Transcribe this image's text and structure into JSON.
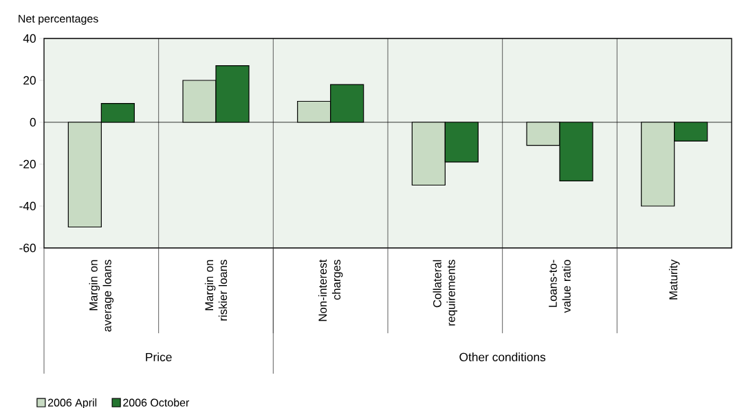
{
  "chart_data": {
    "type": "bar",
    "ylabel": "Net percentages",
    "categories": [
      "Margin on average loans",
      "Margin on riskier loans",
      "Non-interest charges",
      "Collateral requirements",
      "Loans-to-value ratio",
      "Maturity"
    ],
    "series": [
      {
        "name": "2006 April",
        "color": "#c8dbc3",
        "values": [
          -50,
          20,
          10,
          -30,
          -11,
          -40
        ]
      },
      {
        "name": "2006 October",
        "color": "#247530",
        "values": [
          9,
          27,
          18,
          -19,
          -28,
          -9
        ]
      }
    ],
    "ylim": [
      -60,
      40
    ],
    "yticks": [
      -60,
      -40,
      -20,
      0,
      20,
      40
    ],
    "grid": "x",
    "legend": "bottom left",
    "annotations": [
      "Price",
      "Other conditions"
    ]
  }
}
